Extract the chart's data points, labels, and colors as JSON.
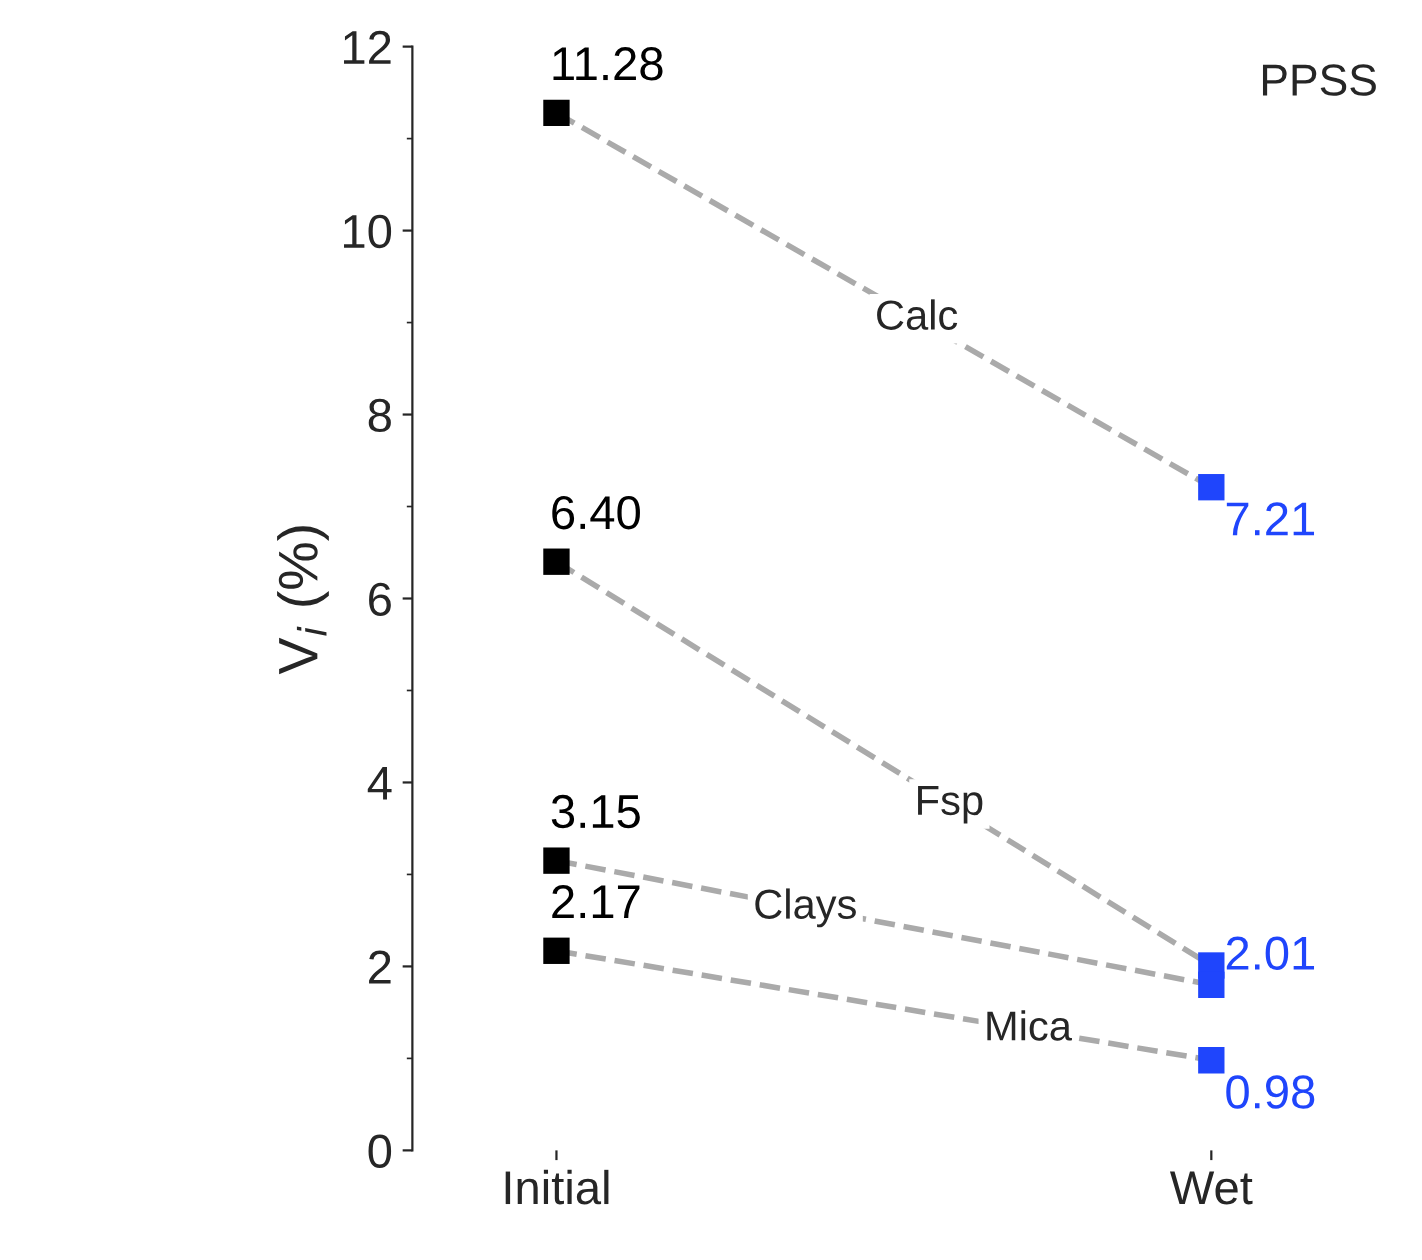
{
  "chart_data": {
    "type": "line",
    "categories": [
      "Initial",
      "Wet"
    ],
    "ylabel": "V$_{i}$ (%)",
    "ylim": [
      0,
      12
    ],
    "yticks": [
      0,
      2,
      4,
      6,
      8,
      10,
      12
    ],
    "grid": false,
    "legend": false,
    "marker": "square",
    "line_style": "dashed",
    "annotations": [
      "PPSS"
    ],
    "series": [
      {
        "name": "Calc",
        "color": "#aaaaaa",
        "colors": [
          "#000000",
          "#1f45fc"
        ],
        "values": [
          11.28,
          7.21
        ],
        "value_labels": [
          "11.28",
          "7.21"
        ]
      },
      {
        "name": "Fsp",
        "color": "#aaaaaa",
        "colors": [
          "#000000",
          "#1f45fc"
        ],
        "values": [
          6.4,
          2.01
        ],
        "value_labels": [
          "6.40",
          "2.01"
        ]
      },
      {
        "name": "Clays",
        "color": "#aaaaaa",
        "colors": [
          "#000000",
          "#1f45fc"
        ],
        "values": [
          3.15,
          1.8
        ],
        "value_labels": [
          "3.15",
          null
        ]
      },
      {
        "name": "Mica",
        "color": "#aaaaaa",
        "colors": [
          "#000000",
          "#1f45fc"
        ],
        "values": [
          2.17,
          0.98
        ],
        "value_labels": [
          "2.17",
          "0.98"
        ]
      }
    ]
  }
}
